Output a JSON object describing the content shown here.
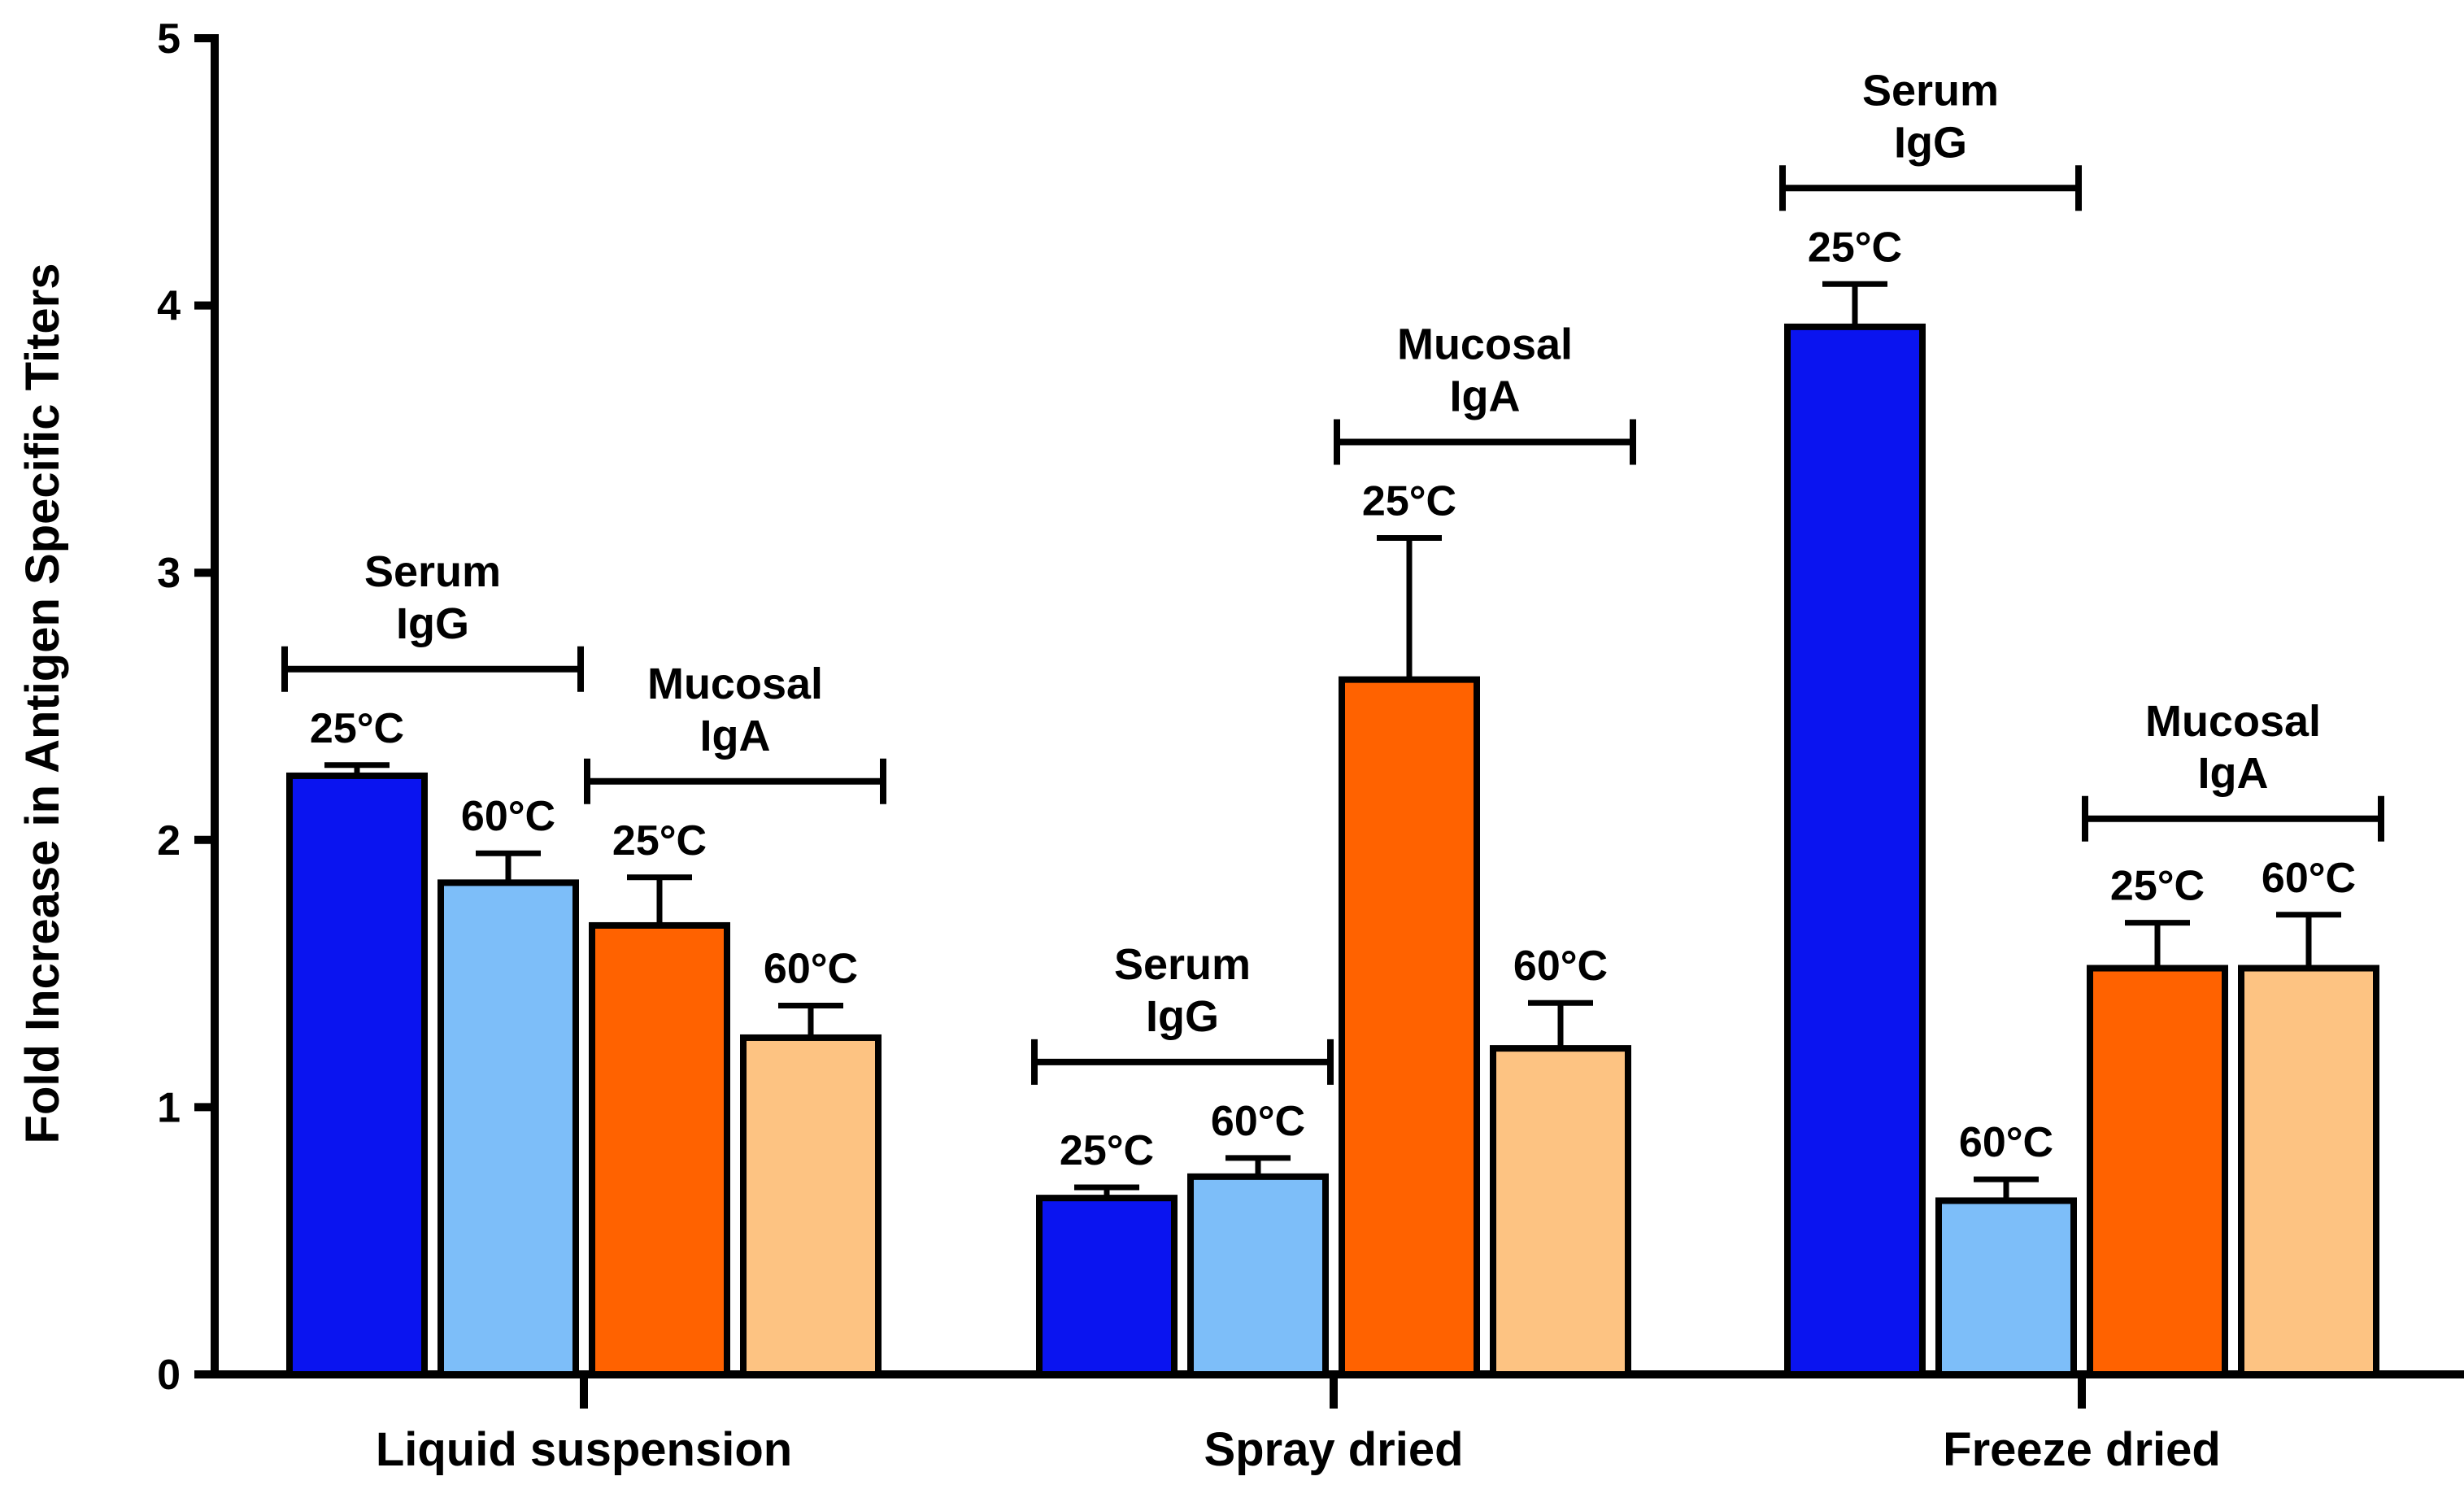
{
  "chart_data": {
    "type": "bar",
    "title": "",
    "xlabel": "",
    "ylabel": "Fold Increase in Antigen Specific Titers",
    "ylim": [
      0,
      5
    ],
    "yticks": [
      0,
      1,
      2,
      3,
      4,
      5
    ],
    "categories": [
      "Liquid suspension",
      "Spray dried",
      "Freeze dried"
    ],
    "colors": {
      "serum_igg_25": "#0A14F0",
      "serum_igg_60": "#7DBEF9",
      "mucosal_iga_25": "#FF6200",
      "mucosal_iga_60": "#FDC382"
    },
    "series": [
      {
        "values": [
          2.24,
          0.66,
          3.92
        ],
        "error": [
          0.04,
          0.04,
          0.16
        ],
        "labels": [
          "25°C",
          "25°C",
          "25°C"
        ]
      },
      {
        "values": [
          1.84,
          0.74,
          0.65
        ],
        "error": [
          0.11,
          0.07,
          0.08
        ],
        "labels": [
          "60°C",
          "60°C",
          "60°C"
        ]
      },
      {
        "values": [
          1.68,
          2.6,
          1.52
        ],
        "error": [
          0.18,
          0.53,
          0.17
        ],
        "labels": [
          "25°C",
          "25°C",
          "25°C"
        ]
      },
      {
        "values": [
          1.26,
          1.22,
          1.52
        ],
        "error": [
          0.12,
          0.17,
          0.2
        ],
        "labels": [
          "60°C",
          "60°C",
          "60°C"
        ]
      }
    ],
    "group_annotations": [
      {
        "line1": "Serum",
        "line2": "IgG"
      },
      {
        "line1": "Mucosal",
        "line2": "IgA"
      },
      {
        "line1": "Serum",
        "line2": "IgG"
      },
      {
        "line1": "Mucosal",
        "line2": "IgA"
      },
      {
        "line1": "Serum",
        "line2": "IgG"
      },
      {
        "line1": "Mucosal",
        "line2": "IgA"
      }
    ]
  }
}
